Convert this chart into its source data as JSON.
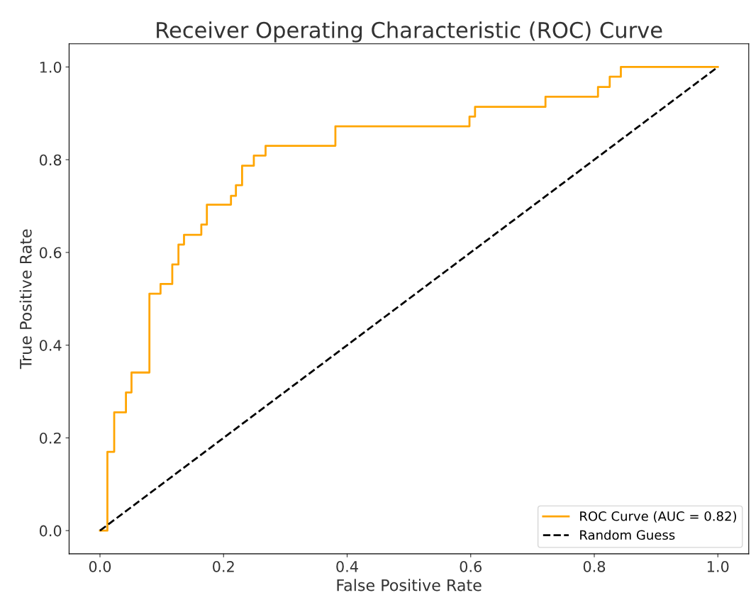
{
  "chart_data": {
    "type": "line",
    "title": "Receiver Operating Characteristic (ROC) Curve",
    "xlabel": "False Positive Rate",
    "ylabel": "True Positive Rate",
    "xlim": [
      -0.05,
      1.05
    ],
    "ylim": [
      -0.05,
      1.05
    ],
    "xticks": [
      {
        "value": 0,
        "label": "0.0"
      },
      {
        "value": 0.2,
        "label": "0.2"
      },
      {
        "value": 0.4,
        "label": "0.4"
      },
      {
        "value": 0.6,
        "label": "0.6"
      },
      {
        "value": 0.8,
        "label": "0.8"
      },
      {
        "value": 1,
        "label": "1.0"
      }
    ],
    "yticks": [
      {
        "value": 0,
        "label": "0.0"
      },
      {
        "value": 0.2,
        "label": "0.2"
      },
      {
        "value": 0.4,
        "label": "0.4"
      },
      {
        "value": 0.6,
        "label": "0.6"
      },
      {
        "value": 0.8,
        "label": "0.8"
      },
      {
        "value": 1,
        "label": "1.0"
      }
    ],
    "grid": false,
    "legend": "lower right",
    "series": [
      {
        "name": "ROC Curve (AUC = 0.82)",
        "color": "#ffa500",
        "line_style": "solid",
        "x": [
          0,
          0.012,
          0.012,
          0.023,
          0.023,
          0.042,
          0.042,
          0.051,
          0.051,
          0.08,
          0.08,
          0.098,
          0.098,
          0.117,
          0.117,
          0.127,
          0.127,
          0.136,
          0.136,
          0.164,
          0.164,
          0.173,
          0.173,
          0.212,
          0.212,
          0.22,
          0.22,
          0.23,
          0.23,
          0.249,
          0.249,
          0.268,
          0.268,
          0.381,
          0.381,
          0.598,
          0.598,
          0.607,
          0.607,
          0.721,
          0.721,
          0.806,
          0.806,
          0.825,
          0.825,
          0.843,
          0.843,
          1.0
        ],
        "values": [
          0,
          0,
          0.17,
          0.17,
          0.255,
          0.255,
          0.298,
          0.298,
          0.341,
          0.341,
          0.511,
          0.511,
          0.532,
          0.532,
          0.574,
          0.574,
          0.617,
          0.617,
          0.638,
          0.638,
          0.66,
          0.66,
          0.703,
          0.703,
          0.722,
          0.722,
          0.745,
          0.745,
          0.787,
          0.787,
          0.809,
          0.809,
          0.83,
          0.83,
          0.872,
          0.872,
          0.893,
          0.893,
          0.914,
          0.914,
          0.936,
          0.936,
          0.957,
          0.957,
          0.979,
          0.979,
          1.0,
          1.0
        ]
      },
      {
        "name": "Random Guess",
        "color": "#000000",
        "line_style": "dashed",
        "x": [
          0,
          1
        ],
        "values": [
          0,
          1
        ]
      }
    ]
  }
}
